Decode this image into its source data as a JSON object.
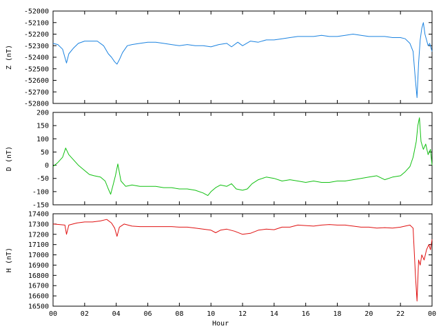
{
  "chart_data": [
    {
      "type": "line",
      "ylabel": "Z (nT)",
      "ylim": [
        -52800,
        -52000
      ],
      "yticks": [
        -52000,
        -52100,
        -52200,
        -52300,
        -52400,
        -52500,
        -52600,
        -52700,
        -52800
      ],
      "xlim": [
        0,
        24
      ],
      "xticks": [],
      "color": "#1a82e0",
      "x": [
        0,
        0.3,
        0.6,
        0.85,
        1.0,
        1.3,
        1.6,
        2.0,
        2.3,
        2.8,
        3.2,
        3.5,
        3.7,
        3.9,
        4.05,
        4.2,
        4.4,
        4.7,
        5.0,
        5.5,
        6.0,
        6.5,
        7.0,
        7.5,
        8.0,
        8.5,
        9.0,
        9.5,
        10.0,
        10.5,
        11.0,
        11.3,
        11.7,
        12.0,
        12.5,
        13.0,
        13.5,
        14.0,
        14.5,
        15.0,
        15.5,
        16.0,
        16.5,
        17.0,
        17.5,
        18.0,
        18.5,
        19.0,
        19.5,
        20.0,
        20.5,
        21.0,
        21.5,
        22.0,
        22.3,
        22.6,
        22.8,
        22.95,
        23.05,
        23.15,
        23.25,
        23.35,
        23.45,
        23.55,
        23.65,
        23.75,
        23.85,
        24.0
      ],
      "y": [
        -52280,
        -52290,
        -52330,
        -52450,
        -52370,
        -52320,
        -52280,
        -52260,
        -52260,
        -52260,
        -52300,
        -52370,
        -52400,
        -52440,
        -52460,
        -52420,
        -52360,
        -52300,
        -52290,
        -52280,
        -52270,
        -52270,
        -52280,
        -52290,
        -52300,
        -52290,
        -52300,
        -52300,
        -52310,
        -52290,
        -52280,
        -52310,
        -52270,
        -52300,
        -52260,
        -52270,
        -52250,
        -52250,
        -52240,
        -52230,
        -52220,
        -52220,
        -52220,
        -52210,
        -52220,
        -52220,
        -52210,
        -52200,
        -52210,
        -52220,
        -52220,
        -52220,
        -52230,
        -52230,
        -52240,
        -52280,
        -52350,
        -52600,
        -52750,
        -52450,
        -52250,
        -52150,
        -52100,
        -52200,
        -52250,
        -52300,
        -52280,
        -52350
      ]
    },
    {
      "type": "line",
      "ylabel": "D (nT)",
      "ylim": [
        -150,
        200
      ],
      "yticks": [
        200,
        150,
        100,
        50,
        0,
        -50,
        -100,
        -150
      ],
      "xlim": [
        0,
        24
      ],
      "xticks": [],
      "color": "#10c010",
      "x": [
        0,
        0.3,
        0.6,
        0.8,
        1.0,
        1.3,
        1.6,
        2.0,
        2.3,
        2.6,
        3.0,
        3.3,
        3.5,
        3.65,
        3.8,
        3.95,
        4.1,
        4.3,
        4.6,
        5.0,
        5.5,
        6.0,
        6.5,
        7.0,
        7.5,
        8.0,
        8.5,
        9.0,
        9.5,
        9.8,
        10.0,
        10.3,
        10.6,
        11.0,
        11.3,
        11.6,
        12.0,
        12.3,
        12.6,
        13.0,
        13.5,
        14.0,
        14.5,
        15.0,
        15.5,
        16.0,
        16.5,
        17.0,
        17.5,
        18.0,
        18.5,
        19.0,
        19.5,
        20.0,
        20.5,
        21.0,
        21.5,
        22.0,
        22.3,
        22.6,
        22.8,
        23.0,
        23.1,
        23.2,
        23.3,
        23.45,
        23.6,
        23.75,
        23.9,
        24.0
      ],
      "y": [
        -5,
        10,
        30,
        65,
        40,
        20,
        0,
        -20,
        -35,
        -40,
        -45,
        -60,
        -90,
        -110,
        -75,
        -40,
        5,
        -60,
        -80,
        -75,
        -80,
        -80,
        -80,
        -85,
        -85,
        -90,
        -90,
        -95,
        -105,
        -115,
        -100,
        -85,
        -75,
        -80,
        -70,
        -90,
        -95,
        -90,
        -70,
        -55,
        -45,
        -50,
        -60,
        -55,
        -60,
        -65,
        -60,
        -65,
        -65,
        -60,
        -60,
        -55,
        -50,
        -45,
        -40,
        -55,
        -45,
        -40,
        -25,
        -5,
        30,
        90,
        150,
        180,
        90,
        60,
        80,
        40,
        60,
        0
      ]
    },
    {
      "type": "line",
      "ylabel": "H (nT)",
      "xlabel": "Hour",
      "ylim": [
        16500,
        17400
      ],
      "yticks": [
        17400,
        17300,
        17200,
        17100,
        17000,
        16900,
        16800,
        16700,
        16600,
        16500
      ],
      "xlim": [
        0,
        24
      ],
      "xticks": [
        "00",
        "02",
        "04",
        "06",
        "08",
        "10",
        "12",
        "14",
        "16",
        "18",
        "20",
        "22",
        "00"
      ],
      "color": "#e01010",
      "x": [
        0,
        0.4,
        0.75,
        0.85,
        1.0,
        1.5,
        2.0,
        2.5,
        3.0,
        3.4,
        3.7,
        3.9,
        4.05,
        4.2,
        4.5,
        5.0,
        5.5,
        6.0,
        6.5,
        7.0,
        7.5,
        8.0,
        8.5,
        9.0,
        9.5,
        10.0,
        10.3,
        10.6,
        11.0,
        11.5,
        12.0,
        12.5,
        13.0,
        13.5,
        14.0,
        14.5,
        15.0,
        15.5,
        16.0,
        16.5,
        17.0,
        17.5,
        18.0,
        18.5,
        19.0,
        19.5,
        20.0,
        20.5,
        21.0,
        21.5,
        22.0,
        22.3,
        22.6,
        22.8,
        22.95,
        23.05,
        23.15,
        23.25,
        23.35,
        23.5,
        23.65,
        23.8,
        23.9,
        24.0
      ],
      "y": [
        17300,
        17295,
        17290,
        17200,
        17290,
        17310,
        17320,
        17320,
        17330,
        17345,
        17310,
        17260,
        17180,
        17270,
        17300,
        17280,
        17275,
        17275,
        17275,
        17275,
        17275,
        17270,
        17270,
        17260,
        17250,
        17240,
        17215,
        17240,
        17250,
        17230,
        17200,
        17210,
        17240,
        17250,
        17245,
        17270,
        17270,
        17290,
        17285,
        17280,
        17290,
        17295,
        17290,
        17290,
        17280,
        17270,
        17270,
        17260,
        17265,
        17260,
        17270,
        17280,
        17290,
        17260,
        16800,
        16550,
        16950,
        16900,
        17000,
        16950,
        17050,
        17100,
        17050,
        17150
      ]
    }
  ]
}
